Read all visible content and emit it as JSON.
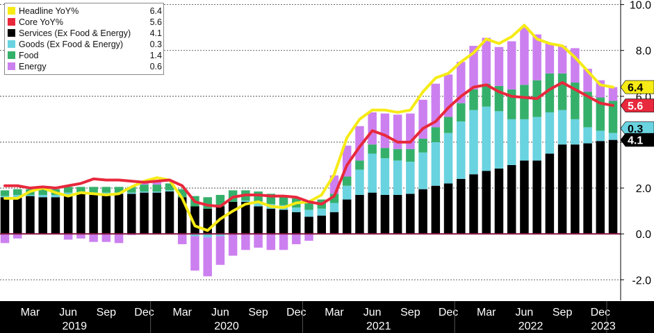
{
  "chart_data": {
    "type": "bar",
    "stacked": true,
    "title": "",
    "xlabel": "",
    "ylabel": "",
    "ylim": [
      -2.9,
      10.2
    ],
    "y_ticks": [
      "10.0",
      "8.0",
      "6.0",
      "4.0",
      "2.0",
      "0.0",
      "-2.0"
    ],
    "y_tick_values": [
      10,
      8,
      6,
      4,
      2,
      0,
      -2
    ],
    "y_axis_side": "right",
    "grid": "horizontal dashed",
    "legend_position": "top-left",
    "x_month_ticks": [
      "Mar",
      "Jun",
      "Sep",
      "Dec",
      "Mar",
      "Jun",
      "Sep",
      "Dec",
      "Mar",
      "Jun",
      "Sep",
      "Dec",
      "Mar",
      "Jun",
      "Sep",
      "Dec"
    ],
    "x_month_tick_indices": [
      2,
      5,
      8,
      11,
      14,
      17,
      20,
      23,
      26,
      29,
      32,
      35,
      38,
      41,
      44,
      47
    ],
    "x_years": [
      "2019",
      "2020",
      "2021",
      "2022",
      "2023"
    ],
    "x_year_spans": [
      [
        0,
        11
      ],
      [
        12,
        23
      ],
      [
        24,
        35
      ],
      [
        36,
        47
      ],
      [
        48,
        48
      ]
    ],
    "categories": [
      "2019-01",
      "2019-02",
      "2019-03",
      "2019-04",
      "2019-05",
      "2019-06",
      "2019-07",
      "2019-08",
      "2019-09",
      "2019-10",
      "2019-11",
      "2019-12",
      "2020-01",
      "2020-02",
      "2020-03",
      "2020-04",
      "2020-05",
      "2020-06",
      "2020-07",
      "2020-08",
      "2020-09",
      "2020-10",
      "2020-11",
      "2020-12",
      "2021-01",
      "2021-02",
      "2021-03",
      "2021-04",
      "2021-05",
      "2021-06",
      "2021-07",
      "2021-08",
      "2021-09",
      "2021-10",
      "2021-11",
      "2021-12",
      "2022-01",
      "2022-02",
      "2022-03",
      "2022-04",
      "2022-05",
      "2022-06",
      "2022-07",
      "2022-08",
      "2022-09",
      "2022-10",
      "2022-11",
      "2022-12",
      "2023-01"
    ],
    "series": [
      {
        "name": "Services (Ex Food & Energy)",
        "kind": "bar",
        "color": "#000000",
        "values": [
          1.6,
          1.6,
          1.65,
          1.6,
          1.6,
          1.7,
          1.75,
          1.7,
          1.7,
          1.75,
          1.75,
          1.8,
          1.8,
          1.85,
          1.6,
          1.2,
          1.1,
          1.2,
          1.4,
          1.4,
          1.2,
          1.1,
          1.05,
          0.95,
          0.75,
          0.8,
          0.95,
          1.5,
          1.7,
          1.8,
          1.7,
          1.7,
          1.75,
          1.95,
          2.1,
          2.2,
          2.4,
          2.6,
          2.75,
          2.85,
          3.0,
          3.2,
          3.2,
          3.5,
          3.9,
          3.9,
          3.95,
          4.05,
          4.1
        ]
      },
      {
        "name": "Goods (Ex Food & Energy)",
        "kind": "bar",
        "color": "#6ad3e0",
        "values": [
          0.05,
          0.1,
          0.05,
          0.1,
          0.1,
          0.1,
          0.05,
          0.1,
          0.1,
          0.05,
          0.05,
          0.05,
          0.05,
          0.05,
          0.0,
          -0.1,
          -0.15,
          -0.1,
          0.0,
          0.05,
          0.2,
          0.2,
          0.2,
          0.2,
          0.3,
          0.3,
          0.4,
          0.6,
          1.1,
          1.7,
          1.6,
          1.5,
          1.4,
          1.6,
          1.9,
          2.2,
          2.5,
          2.8,
          2.8,
          2.5,
          2.0,
          1.8,
          1.9,
          1.8,
          1.5,
          1.1,
          0.7,
          0.45,
          0.3
        ]
      },
      {
        "name": "Food",
        "kind": "bar",
        "color": "#35b06b",
        "values": [
          0.25,
          0.25,
          0.25,
          0.25,
          0.25,
          0.25,
          0.25,
          0.25,
          0.25,
          0.25,
          0.25,
          0.3,
          0.3,
          0.3,
          0.35,
          0.45,
          0.5,
          0.5,
          0.5,
          0.45,
          0.45,
          0.45,
          0.4,
          0.4,
          0.4,
          0.4,
          0.4,
          0.4,
          0.4,
          0.4,
          0.45,
          0.5,
          0.55,
          0.6,
          0.65,
          0.7,
          0.8,
          0.9,
          1.0,
          1.1,
          1.3,
          1.5,
          1.6,
          1.7,
          1.6,
          1.6,
          1.55,
          1.45,
          1.4
        ]
      },
      {
        "name": "Energy",
        "kind": "bar",
        "color": "#cc80f0",
        "values": [
          -0.4,
          -0.2,
          0.0,
          0.0,
          0.0,
          -0.25,
          -0.2,
          -0.35,
          -0.35,
          -0.4,
          -0.05,
          0.15,
          0.2,
          0.0,
          -0.45,
          -1.5,
          -1.7,
          -1.25,
          -0.95,
          -0.7,
          -0.6,
          -0.7,
          -0.7,
          -0.45,
          -0.3,
          0.0,
          0.8,
          1.35,
          1.5,
          1.4,
          1.5,
          1.5,
          1.55,
          1.7,
          1.9,
          1.85,
          1.8,
          1.9,
          2.0,
          1.7,
          2.1,
          2.5,
          2.0,
          1.3,
          1.2,
          1.5,
          1.0,
          0.75,
          0.6
        ]
      },
      {
        "name": "Headline YoY%",
        "kind": "line",
        "color": "#f6eb16",
        "values": [
          1.55,
          1.55,
          1.85,
          2.0,
          1.8,
          1.65,
          1.8,
          1.75,
          1.7,
          1.75,
          2.05,
          2.3,
          2.45,
          2.35,
          1.55,
          0.35,
          0.15,
          0.65,
          1.0,
          1.3,
          1.4,
          1.2,
          1.15,
          1.35,
          1.4,
          1.7,
          2.6,
          4.2,
          5.0,
          5.4,
          5.4,
          5.3,
          5.4,
          6.2,
          6.8,
          7.0,
          7.5,
          7.9,
          8.5,
          8.3,
          8.6,
          9.1,
          8.5,
          8.3,
          8.2,
          7.7,
          7.1,
          6.5,
          6.4
        ]
      },
      {
        "name": "Core YoY%",
        "kind": "line",
        "color": "#e8283c",
        "values": [
          2.1,
          2.1,
          2.0,
          2.05,
          2.0,
          2.1,
          2.2,
          2.4,
          2.35,
          2.35,
          2.3,
          2.25,
          2.3,
          2.35,
          2.1,
          1.4,
          1.25,
          1.2,
          1.6,
          1.7,
          1.7,
          1.65,
          1.65,
          1.6,
          1.4,
          1.3,
          1.65,
          3.0,
          3.8,
          4.5,
          4.3,
          4.0,
          4.0,
          4.6,
          4.9,
          5.5,
          6.0,
          6.4,
          6.5,
          6.2,
          6.0,
          5.95,
          5.9,
          6.3,
          6.6,
          6.3,
          6.0,
          5.7,
          5.6
        ]
      }
    ],
    "legend": [
      {
        "label": "Headline YoY%",
        "value": "6.4",
        "color": "#f6eb16"
      },
      {
        "label": "Core YoY%",
        "value": "5.6",
        "color": "#e8283c"
      },
      {
        "label": "Services (Ex Food & Energy)",
        "value": "4.1",
        "color": "#000000"
      },
      {
        "label": "Goods (Ex Food & Energy)",
        "value": "0.3",
        "color": "#6ad3e0"
      },
      {
        "label": "Food",
        "value": "1.4",
        "color": "#35b06b"
      },
      {
        "label": "Energy",
        "value": "0.6",
        "color": "#cc80f0"
      }
    ],
    "end_labels": [
      {
        "value": "6.4",
        "y": 6.4,
        "bg": "#f6eb16",
        "fg": "#000000"
      },
      {
        "value": "5.6",
        "y": 5.6,
        "bg": "#e8283c",
        "fg": "#ffffff"
      },
      {
        "value": "0.3",
        "y": 4.6,
        "bg": "#6ad3e0",
        "fg": "#000000"
      },
      {
        "value": "4.1",
        "y": 4.1,
        "bg": "#000000",
        "fg": "#ffffff"
      }
    ],
    "colors": {
      "axis_band": "#000000",
      "axis_text": "#ffffff",
      "zero_line": "#8b1a4a",
      "grid": "#333333"
    }
  }
}
